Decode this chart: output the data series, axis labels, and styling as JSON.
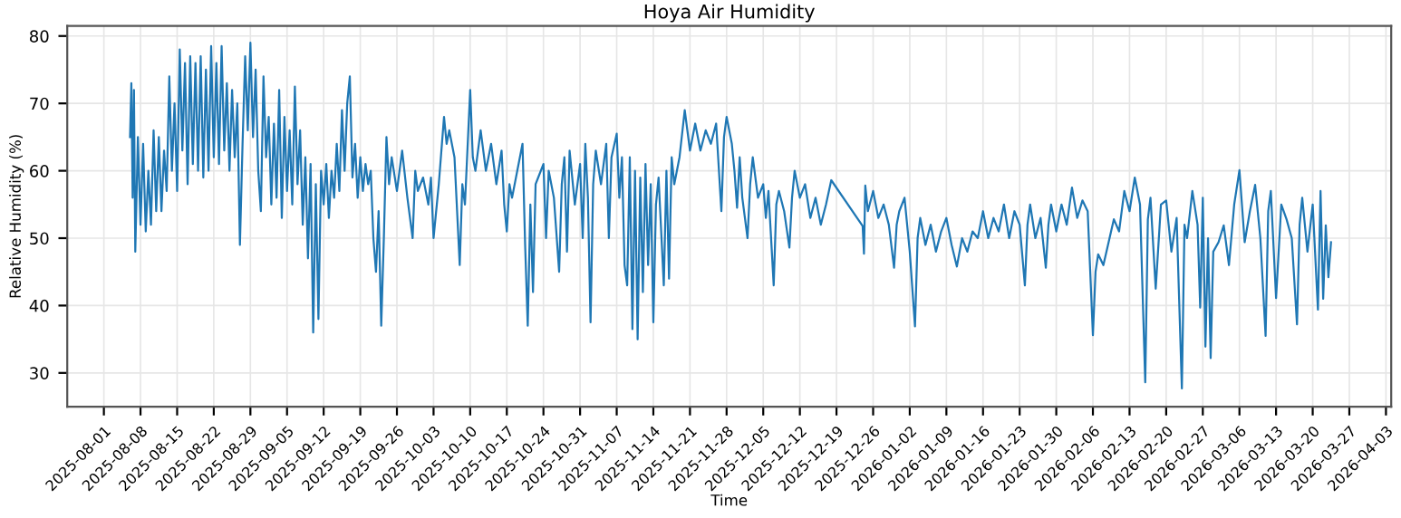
{
  "chart_data": {
    "type": "line",
    "title": "Hoya Air Humidity",
    "xlabel": "Time",
    "ylabel": "Relative Humidity (%)",
    "xlim": [
      "2025-07-25",
      "2026-04-04"
    ],
    "xticks": [
      "2025-08-01",
      "2025-08-08",
      "2025-08-15",
      "2025-08-22",
      "2025-08-29",
      "2025-09-05",
      "2025-09-12",
      "2025-09-19",
      "2025-09-26",
      "2025-10-03",
      "2025-10-10",
      "2025-10-17",
      "2025-10-24",
      "2025-10-31",
      "2025-11-07",
      "2025-11-14",
      "2025-11-21",
      "2025-11-28",
      "2025-12-05",
      "2025-12-12",
      "2025-12-19",
      "2025-12-26",
      "2026-01-02",
      "2026-01-09",
      "2026-01-16",
      "2026-01-23",
      "2026-01-30",
      "2026-02-06",
      "2026-02-13",
      "2026-02-20",
      "2026-02-27",
      "2026-03-06",
      "2026-03-13",
      "2026-03-20",
      "2026-03-27",
      "2026-04-03"
    ],
    "ylim": [
      25,
      81.5
    ],
    "yticks": [
      30,
      40,
      50,
      60,
      70,
      80
    ],
    "grid": true,
    "line_style": "solid",
    "marker": "none",
    "series": [
      {
        "color": "#1f77b4",
        "x": [
          "2025-08-06T00:00",
          "2025-08-06T06:00",
          "2025-08-06T12:00",
          "2025-08-06T18:00",
          "2025-08-07T00:00",
          "2025-08-07T12:00",
          "2025-08-08T00:00",
          "2025-08-08T12:00",
          "2025-08-09T00:00",
          "2025-08-09T12:00",
          "2025-08-10T00:00",
          "2025-08-10T12:00",
          "2025-08-11T00:00",
          "2025-08-11T12:00",
          "2025-08-12T00:00",
          "2025-08-12T12:00",
          "2025-08-13T00:00",
          "2025-08-13T12:00",
          "2025-08-14T00:00",
          "2025-08-14T12:00",
          "2025-08-15T00:00",
          "2025-08-15T12:00",
          "2025-08-16T00:00",
          "2025-08-16T12:00",
          "2025-08-17T00:00",
          "2025-08-17T12:00",
          "2025-08-18T00:00",
          "2025-08-18T12:00",
          "2025-08-19T00:00",
          "2025-08-19T12:00",
          "2025-08-20T00:00",
          "2025-08-20T12:00",
          "2025-08-21T00:00",
          "2025-08-21T12:00",
          "2025-08-22T00:00",
          "2025-08-22T12:00",
          "2025-08-23T00:00",
          "2025-08-23T12:00",
          "2025-08-24T00:00",
          "2025-08-24T12:00",
          "2025-08-25T00:00",
          "2025-08-25T12:00",
          "2025-08-26T00:00",
          "2025-08-26T12:00",
          "2025-08-27T00:00",
          "2025-08-27T12:00",
          "2025-08-28T00:00",
          "2025-08-28T12:00",
          "2025-08-29T00:00",
          "2025-08-29T12:00",
          "2025-08-30T00:00",
          "2025-08-30T12:00",
          "2025-08-31T00:00",
          "2025-08-31T12:00",
          "2025-09-01T00:00",
          "2025-09-01T12:00",
          "2025-09-02T00:00",
          "2025-09-02T12:00",
          "2025-09-03T00:00",
          "2025-09-03T12:00",
          "2025-09-04T00:00",
          "2025-09-04T12:00",
          "2025-09-05T00:00",
          "2025-09-05T12:00",
          "2025-09-06T00:00",
          "2025-09-06T12:00",
          "2025-09-07T00:00",
          "2025-09-07T12:00",
          "2025-09-08T00:00",
          "2025-09-08T12:00",
          "2025-09-09T00:00",
          "2025-09-09T12:00",
          "2025-09-10T00:00",
          "2025-09-10T12:00",
          "2025-09-11T00:00",
          "2025-09-11T12:00",
          "2025-09-12T00:00",
          "2025-09-12T12:00",
          "2025-09-13T00:00",
          "2025-09-13T12:00",
          "2025-09-14T00:00",
          "2025-09-14T12:00",
          "2025-09-15T00:00",
          "2025-09-15T12:00",
          "2025-09-16T00:00",
          "2025-09-16T12:00",
          "2025-09-17T00:00",
          "2025-09-17T12:00",
          "2025-09-18T00:00",
          "2025-09-18T12:00",
          "2025-09-19T00:00",
          "2025-09-19T12:00",
          "2025-09-20T00:00",
          "2025-09-20T12:00",
          "2025-09-21T00:00",
          "2025-09-21T12:00",
          "2025-09-22T00:00",
          "2025-09-22T12:00",
          "2025-09-23T00:00",
          "2025-09-23T12:00",
          "2025-09-24T00:00",
          "2025-09-24T12:00",
          "2025-09-25T00:00",
          "2025-09-26T00:00",
          "2025-09-27T00:00",
          "2025-09-28T00:00",
          "2025-09-29T00:00",
          "2025-09-29T12:00",
          "2025-09-30T00:00",
          "2025-10-01T00:00",
          "2025-10-02T00:00",
          "2025-10-02T12:00",
          "2025-10-03T00:00",
          "2025-10-04T00:00",
          "2025-10-05T00:00",
          "2025-10-05T12:00",
          "2025-10-06T00:00",
          "2025-10-07T00:00",
          "2025-10-08T00:00",
          "2025-10-08T12:00",
          "2025-10-09T00:00",
          "2025-10-10T00:00",
          "2025-10-10T12:00",
          "2025-10-11T00:00",
          "2025-10-12T00:00",
          "2025-10-13T00:00",
          "2025-10-14T00:00",
          "2025-10-15T00:00",
          "2025-10-16T00:00",
          "2025-10-16T12:00",
          "2025-10-17T00:00",
          "2025-10-17T12:00",
          "2025-10-18T00:00",
          "2025-10-19T00:00",
          "2025-10-20T00:00",
          "2025-10-20T12:00",
          "2025-10-21T00:00",
          "2025-10-21T12:00",
          "2025-10-22T00:00",
          "2025-10-22T12:00",
          "2025-10-23T00:00",
          "2025-10-24T00:00",
          "2025-10-24T12:00",
          "2025-10-25T00:00",
          "2025-10-26T00:00",
          "2025-10-27T00:00",
          "2025-10-27T12:00",
          "2025-10-28T00:00",
          "2025-10-28T12:00",
          "2025-10-29T00:00",
          "2025-10-30T00:00",
          "2025-10-31T00:00",
          "2025-10-31T12:00",
          "2025-11-01T00:00",
          "2025-11-01T12:00",
          "2025-11-02T00:00",
          "2025-11-02T12:00",
          "2025-11-03T00:00",
          "2025-11-04T00:00",
          "2025-11-05T00:00",
          "2025-11-05T12:00",
          "2025-11-06T00:00",
          "2025-11-07T00:00",
          "2025-11-07T12:00",
          "2025-11-08T00:00",
          "2025-11-08T12:00",
          "2025-11-09T00:00",
          "2025-11-09T12:00",
          "2025-11-10T00:00",
          "2025-11-10T12:00",
          "2025-11-11T00:00",
          "2025-11-11T12:00",
          "2025-11-12T00:00",
          "2025-11-12T12:00",
          "2025-11-13T00:00",
          "2025-11-13T12:00",
          "2025-11-14T00:00",
          "2025-11-14T12:00",
          "2025-11-15T00:00",
          "2025-11-16T00:00",
          "2025-11-16T12:00",
          "2025-11-17T00:00",
          "2025-11-17T12:00",
          "2025-11-18T00:00",
          "2025-11-19T00:00",
          "2025-11-20T00:00",
          "2025-11-21T00:00",
          "2025-11-22T00:00",
          "2025-11-23T00:00",
          "2025-11-24T00:00",
          "2025-11-25T00:00",
          "2025-11-26T00:00",
          "2025-11-27T00:00",
          "2025-11-27T12:00",
          "2025-11-28T00:00",
          "2025-11-29T00:00",
          "2025-11-29T12:00",
          "2025-11-30T00:00",
          "2025-11-30T12:00",
          "2025-12-01T00:00",
          "2025-12-02T00:00",
          "2025-12-02T12:00",
          "2025-12-03T00:00",
          "2025-12-04T00:00",
          "2025-12-05T00:00",
          "2025-12-05T12:00",
          "2025-12-06T00:00",
          "2025-12-07T00:00",
          "2025-12-07T12:00",
          "2025-12-08T00:00",
          "2025-12-09T00:00",
          "2025-12-10T00:00",
          "2025-12-10T12:00",
          "2025-12-11T00:00",
          "2025-12-12T00:00",
          "2025-12-13T00:00",
          "2025-12-14T00:00",
          "2025-12-15T00:00",
          "2025-12-16T00:00",
          "2025-12-17T00:00",
          "2025-12-18T00:00",
          "2025-12-24T00:00",
          "2025-12-24T06:00",
          "2025-12-24T12:00",
          "2025-12-25T00:00",
          "2025-12-26T00:00",
          "2025-12-27T00:00",
          "2025-12-28T00:00",
          "2025-12-29T00:00",
          "2025-12-30T00:00",
          "2025-12-30T12:00",
          "2025-12-31T00:00",
          "2026-01-01T00:00",
          "2026-01-02T00:00",
          "2026-01-03T00:00",
          "2026-01-03T12:00",
          "2026-01-04T00:00",
          "2026-01-05T00:00",
          "2026-01-06T00:00",
          "2026-01-07T00:00",
          "2026-01-08T00:00",
          "2026-01-09T00:00",
          "2026-01-10T00:00",
          "2026-01-11T00:00",
          "2026-01-12T00:00",
          "2026-01-13T00:00",
          "2026-01-14T00:00",
          "2026-01-15T00:00",
          "2026-01-16T00:00",
          "2026-01-17T00:00",
          "2026-01-18T00:00",
          "2026-01-19T00:00",
          "2026-01-20T00:00",
          "2026-01-21T00:00",
          "2026-01-22T00:00",
          "2026-01-23T00:00",
          "2026-01-24T00:00",
          "2026-01-24T12:00",
          "2026-01-25T00:00",
          "2026-01-26T00:00",
          "2026-01-27T00:00",
          "2026-01-28T00:00",
          "2026-01-28T12:00",
          "2026-01-29T00:00",
          "2026-01-30T00:00",
          "2026-01-31T00:00",
          "2026-02-01T00:00",
          "2026-02-02T00:00",
          "2026-02-03T00:00",
          "2026-02-04T00:00",
          "2026-02-05T00:00",
          "2026-02-06T00:00",
          "2026-02-06T12:00",
          "2026-02-07T00:00",
          "2026-02-08T00:00",
          "2026-02-09T00:00",
          "2026-02-10T00:00",
          "2026-02-11T00:00",
          "2026-02-12T00:00",
          "2026-02-13T00:00",
          "2026-02-14T00:00",
          "2026-02-15T00:00",
          "2026-02-16T00:00",
          "2026-02-16T12:00",
          "2026-02-17T00:00",
          "2026-02-18T00:00",
          "2026-02-19T00:00",
          "2026-02-20T00:00",
          "2026-02-21T00:00",
          "2026-02-22T00:00",
          "2026-02-23T00:00",
          "2026-02-23T12:00",
          "2026-02-24T00:00",
          "2026-02-25T00:00",
          "2026-02-26T00:00",
          "2026-02-26T12:00",
          "2026-02-27T00:00",
          "2026-02-27T12:00",
          "2026-02-28T00:00",
          "2026-02-28T12:00",
          "2026-03-01T00:00",
          "2026-03-02T00:00",
          "2026-03-03T00:00",
          "2026-03-04T00:00",
          "2026-03-05T00:00",
          "2026-03-06T00:00",
          "2026-03-07T00:00",
          "2026-03-08T00:00",
          "2026-03-09T00:00",
          "2026-03-10T00:00",
          "2026-03-11T00:00",
          "2026-03-11T12:00",
          "2026-03-12T00:00",
          "2026-03-13T00:00",
          "2026-03-14T00:00",
          "2026-03-15T00:00",
          "2026-03-16T00:00",
          "2026-03-17T00:00",
          "2026-03-17T12:00",
          "2026-03-18T00:00",
          "2026-03-19T00:00",
          "2026-03-20T00:00",
          "2026-03-21T00:00",
          "2026-03-21T12:00",
          "2026-03-22T00:00",
          "2026-03-22T12:00",
          "2026-03-23T00:00",
          "2026-03-23T12:00"
        ],
        "values": [
          65,
          73,
          56,
          72,
          48,
          65,
          52,
          64,
          51,
          60,
          52,
          66,
          54,
          65,
          54,
          63,
          57,
          74,
          60,
          70,
          57,
          78,
          63,
          76,
          58,
          77,
          61,
          76,
          60,
          77,
          59,
          75,
          60,
          78.5,
          62,
          76,
          61,
          78.5,
          63,
          73,
          60,
          72,
          62,
          70,
          49,
          64,
          77,
          66,
          79,
          65,
          75,
          60,
          54,
          74,
          62,
          68,
          55,
          67,
          56,
          72,
          53,
          68,
          57,
          66,
          55,
          72.5,
          58,
          66,
          52,
          62,
          47,
          61,
          36,
          58,
          38,
          60,
          55,
          61,
          53,
          60,
          56,
          64,
          57,
          69,
          60,
          70,
          74,
          59,
          64,
          56,
          62,
          57,
          61,
          58,
          60,
          50,
          45,
          54,
          37,
          50,
          65,
          58,
          62,
          57,
          63,
          56,
          50,
          60,
          57,
          59,
          55,
          59,
          50,
          58,
          68,
          64,
          66,
          62,
          46,
          58,
          55,
          72,
          62,
          60,
          66,
          60,
          64,
          58,
          63,
          55,
          51,
          58,
          56,
          60,
          64,
          49,
          37,
          55,
          42,
          58,
          59,
          61,
          50,
          60,
          56,
          45,
          58,
          62,
          48,
          63,
          55,
          61,
          50,
          64,
          56,
          37.5,
          58,
          63,
          58,
          64,
          50,
          62,
          65.5,
          56,
          62,
          46,
          43,
          62,
          36.5,
          60,
          35,
          59,
          42,
          61,
          46,
          58,
          37.5,
          55,
          59,
          43,
          60,
          44,
          62,
          58,
          62,
          69,
          63,
          67,
          63,
          66,
          64,
          67,
          54,
          65,
          68,
          64,
          60,
          54.5,
          62,
          56,
          50,
          58,
          62,
          56,
          58,
          53,
          57,
          43,
          55,
          57,
          54,
          48.6,
          56,
          60,
          56,
          58,
          53,
          56,
          52,
          55,
          58.6,
          51.8,
          47.7,
          57.8,
          54,
          57,
          53,
          55,
          52,
          45.6,
          52,
          54,
          56,
          48,
          36.9,
          50,
          53,
          49,
          52,
          48,
          51,
          53,
          49,
          45.8,
          50,
          48,
          51,
          50,
          54,
          50,
          53,
          51,
          55,
          50,
          54,
          52,
          43,
          52,
          55,
          50,
          53,
          45.6,
          52,
          55,
          51,
          55,
          52,
          57.5,
          53,
          55.6,
          54,
          35.6,
          45,
          47.6,
          46,
          49.4,
          52.8,
          51,
          57,
          54,
          59,
          55,
          28.6,
          52.8,
          56,
          42.5,
          55,
          55.6,
          48,
          53,
          27.7,
          52,
          50,
          57,
          52,
          39.7,
          56,
          33.9,
          50,
          32.2,
          48,
          49.4,
          51.9,
          46,
          55,
          60.1,
          49.4,
          54,
          57.9,
          50,
          35.5,
          54,
          57,
          41.1,
          55,
          52.8,
          50,
          37.2,
          52,
          56,
          48,
          55,
          39.4,
          57,
          41,
          51.9,
          44.2,
          49.4
        ]
      }
    ]
  }
}
